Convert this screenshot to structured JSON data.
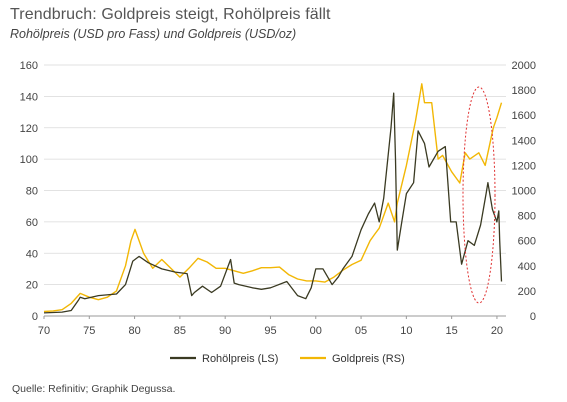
{
  "header": {
    "title": "Trendbruch: Goldpreis steigt, Rohölpreis fällt",
    "subtitle": "Rohölpreis (USD pro Fass) und Goldpreis (USD/oz)"
  },
  "footer": {
    "source": "Quelle: Refinitiv; Graphik Degussa."
  },
  "chart_data": {
    "type": "line",
    "x_ticks": [
      "70",
      "75",
      "80",
      "85",
      "90",
      "95",
      "00",
      "05",
      "10",
      "15",
      "20"
    ],
    "x_range": [
      1970,
      2021
    ],
    "y_left_ticks": [
      "0",
      "20",
      "40",
      "60",
      "80",
      "100",
      "120",
      "140",
      "160"
    ],
    "y_left_range": [
      0,
      160
    ],
    "y_right_ticks": [
      "0",
      "200",
      "400",
      "600",
      "800",
      "1000",
      "1200",
      "1400",
      "1600",
      "1800",
      "2000"
    ],
    "y_right_range": [
      0,
      2000
    ],
    "legend_position": "bottom-center",
    "colors": {
      "oil": "#3a3a22",
      "gold": "#f2b705",
      "highlight": "#e03030"
    },
    "series": [
      {
        "name": "Rohölpreis (LS)",
        "axis": "left",
        "x": [
          1970,
          1972,
          1973,
          1973.8,
          1974,
          1974.5,
          1976,
          1978,
          1979,
          1979.8,
          1980.5,
          1981.5,
          1983,
          1984.5,
          1985.8,
          1986.3,
          1986.6,
          1987.5,
          1988.5,
          1989.5,
          1990.6,
          1991.0,
          1991.5,
          1993,
          1994,
          1995,
          1996.8,
          1998,
          1998.9,
          1999.5,
          2000,
          2000.8,
          2001.8,
          2002.5,
          2003,
          2004,
          2005,
          2005.8,
          2006.5,
          2007,
          2007.5,
          2008.3,
          2008.6,
          2008.8,
          2009.0,
          2009.5,
          2010,
          2010.8,
          2011.3,
          2012,
          2012.5,
          2013.5,
          2014.3,
          2014.9,
          2015.5,
          2016.1,
          2016.8,
          2017.5,
          2018.2,
          2018.8,
          2019.0,
          2019.5,
          2020.0,
          2020.2,
          2020.3,
          2020.5
        ],
        "y": [
          2,
          2.5,
          3.5,
          10,
          12,
          11,
          13,
          14,
          20,
          35,
          38,
          34,
          30,
          28,
          27,
          13,
          15,
          19,
          15,
          19,
          36,
          21,
          20,
          18,
          17,
          18,
          22,
          13,
          11,
          18,
          30,
          30,
          20,
          25,
          30,
          38,
          55,
          65,
          72,
          60,
          75,
          120,
          142,
          100,
          42,
          60,
          78,
          85,
          118,
          110,
          95,
          105,
          108,
          60,
          60,
          33,
          48,
          45,
          58,
          78,
          85,
          68,
          60,
          67,
          48,
          22
        ]
      },
      {
        "name": "Goldpreis (RS)",
        "axis": "right",
        "x": [
          1970,
          1971,
          1972,
          1973,
          1974,
          1975,
          1976,
          1977,
          1978,
          1979,
          1979.6,
          1980.05,
          1980.5,
          1981,
          1982,
          1983,
          1984,
          1985,
          1986,
          1987,
          1988,
          1989,
          1990,
          1991,
          1992,
          1993,
          1994,
          1995,
          1996,
          1997,
          1998,
          1999,
          2000,
          2001,
          2002,
          2003,
          2004,
          2005,
          2006,
          2006.5,
          2007,
          2008,
          2008.7,
          2009,
          2010,
          2011,
          2011.7,
          2012,
          2012.8,
          2013.5,
          2014,
          2015,
          2015.9,
          2016.5,
          2017,
          2018,
          2018.7,
          2019,
          2019.6,
          2020,
          2020.5
        ],
        "y": [
          36,
          41,
          50,
          100,
          180,
          150,
          130,
          150,
          200,
          400,
          600,
          690,
          600,
          500,
          380,
          450,
          380,
          310,
          380,
          460,
          430,
          380,
          380,
          360,
          340,
          360,
          385,
          385,
          390,
          330,
          295,
          280,
          280,
          270,
          310,
          365,
          410,
          445,
          600,
          650,
          700,
          900,
          750,
          900,
          1200,
          1550,
          1850,
          1700,
          1700,
          1250,
          1280,
          1150,
          1060,
          1300,
          1250,
          1300,
          1200,
          1300,
          1500,
          1580,
          1700
        ]
      }
    ]
  }
}
